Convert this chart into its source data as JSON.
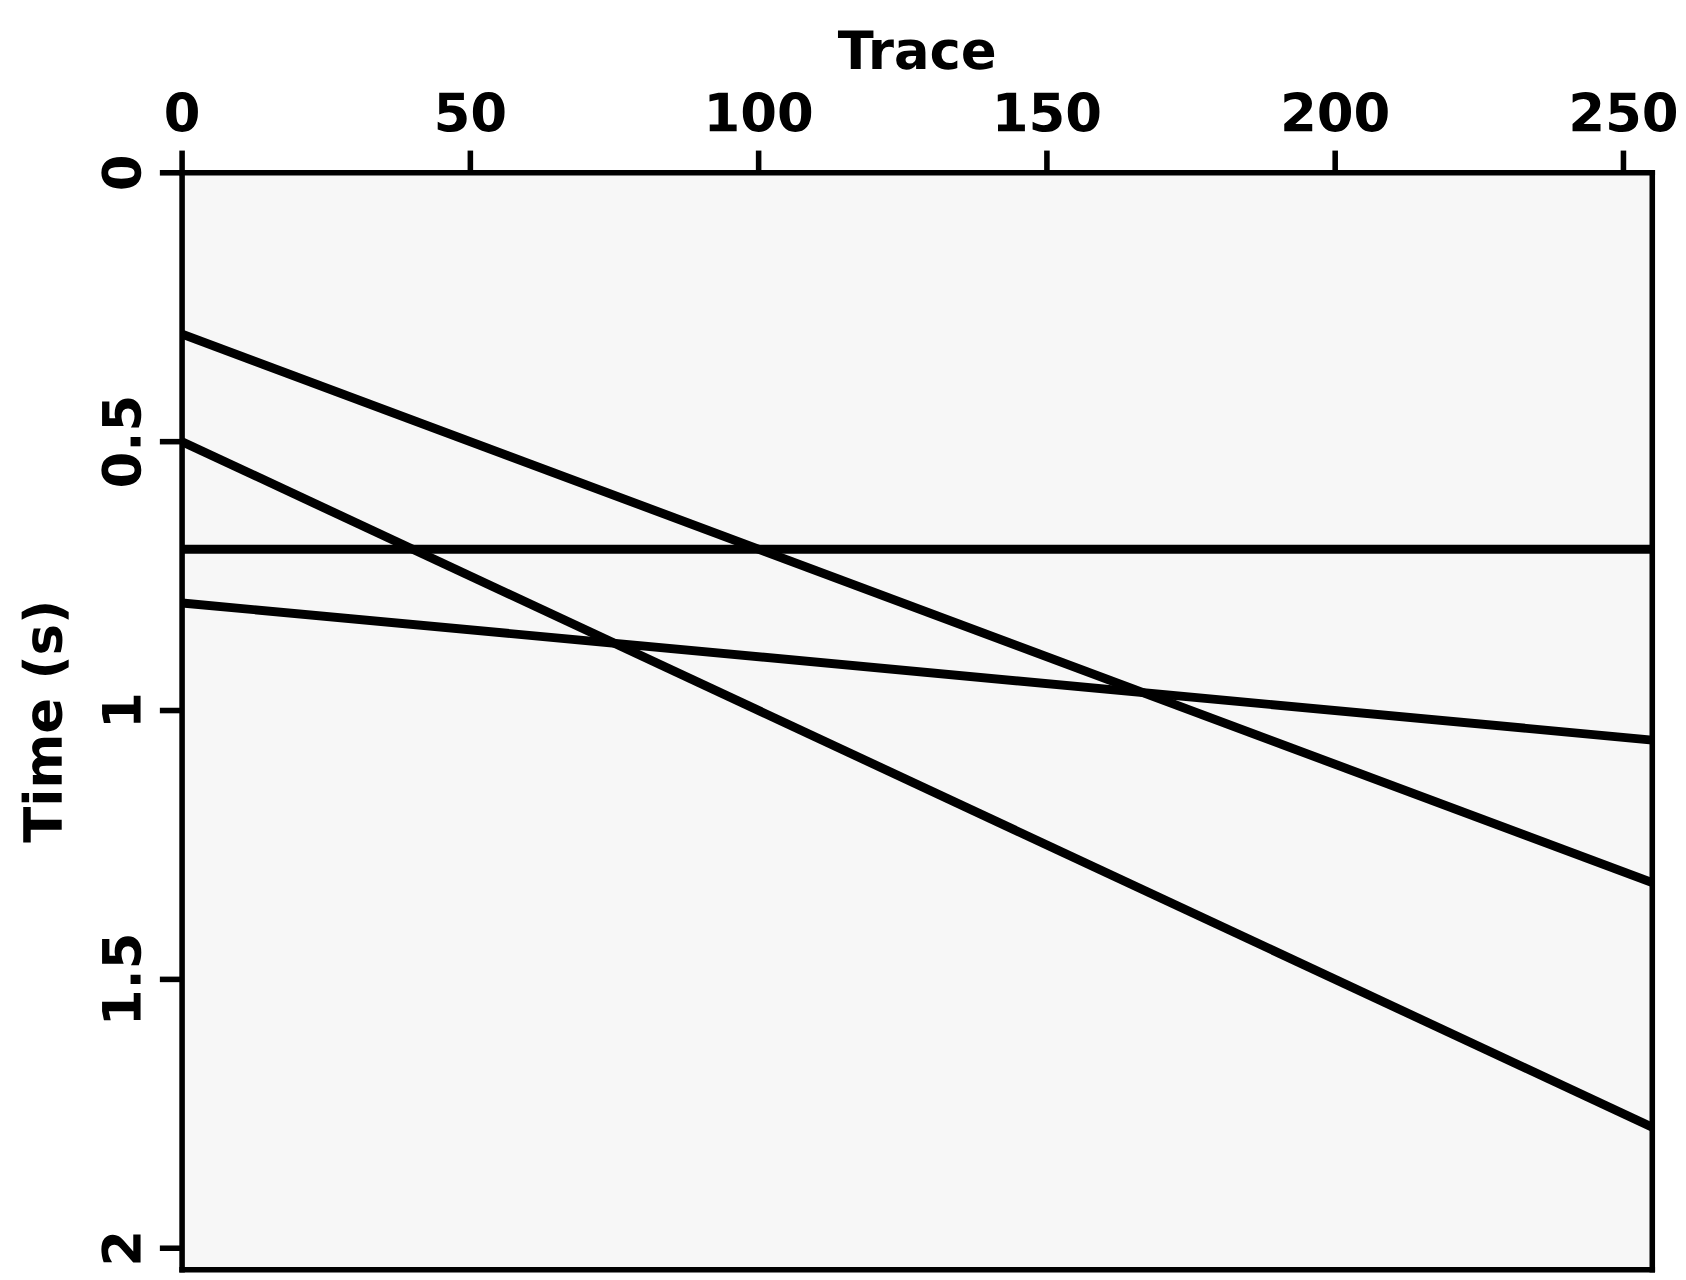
{
  "chart_data": {
    "type": "line",
    "xlabel": "Trace",
    "ylabel": "Time (s)",
    "xlim": [
      0,
      255
    ],
    "xticks": [
      0,
      50,
      100,
      150,
      200,
      250
    ],
    "ylim": [
      2.04,
      0
    ],
    "yticks": [
      0,
      0.5,
      1,
      1.5,
      2
    ],
    "x": [
      0,
      255
    ],
    "series": [
      {
        "color": "#000000",
        "values": [
          0.3,
          1.32
        ]
      },
      {
        "color": "#000000",
        "values": [
          0.7,
          0.7
        ]
      },
      {
        "color": "#000000",
        "values": [
          0.5,
          1.775
        ]
      },
      {
        "color": "#000000",
        "values": [
          0.8,
          1.055
        ]
      }
    ],
    "line_style": "solid"
  }
}
